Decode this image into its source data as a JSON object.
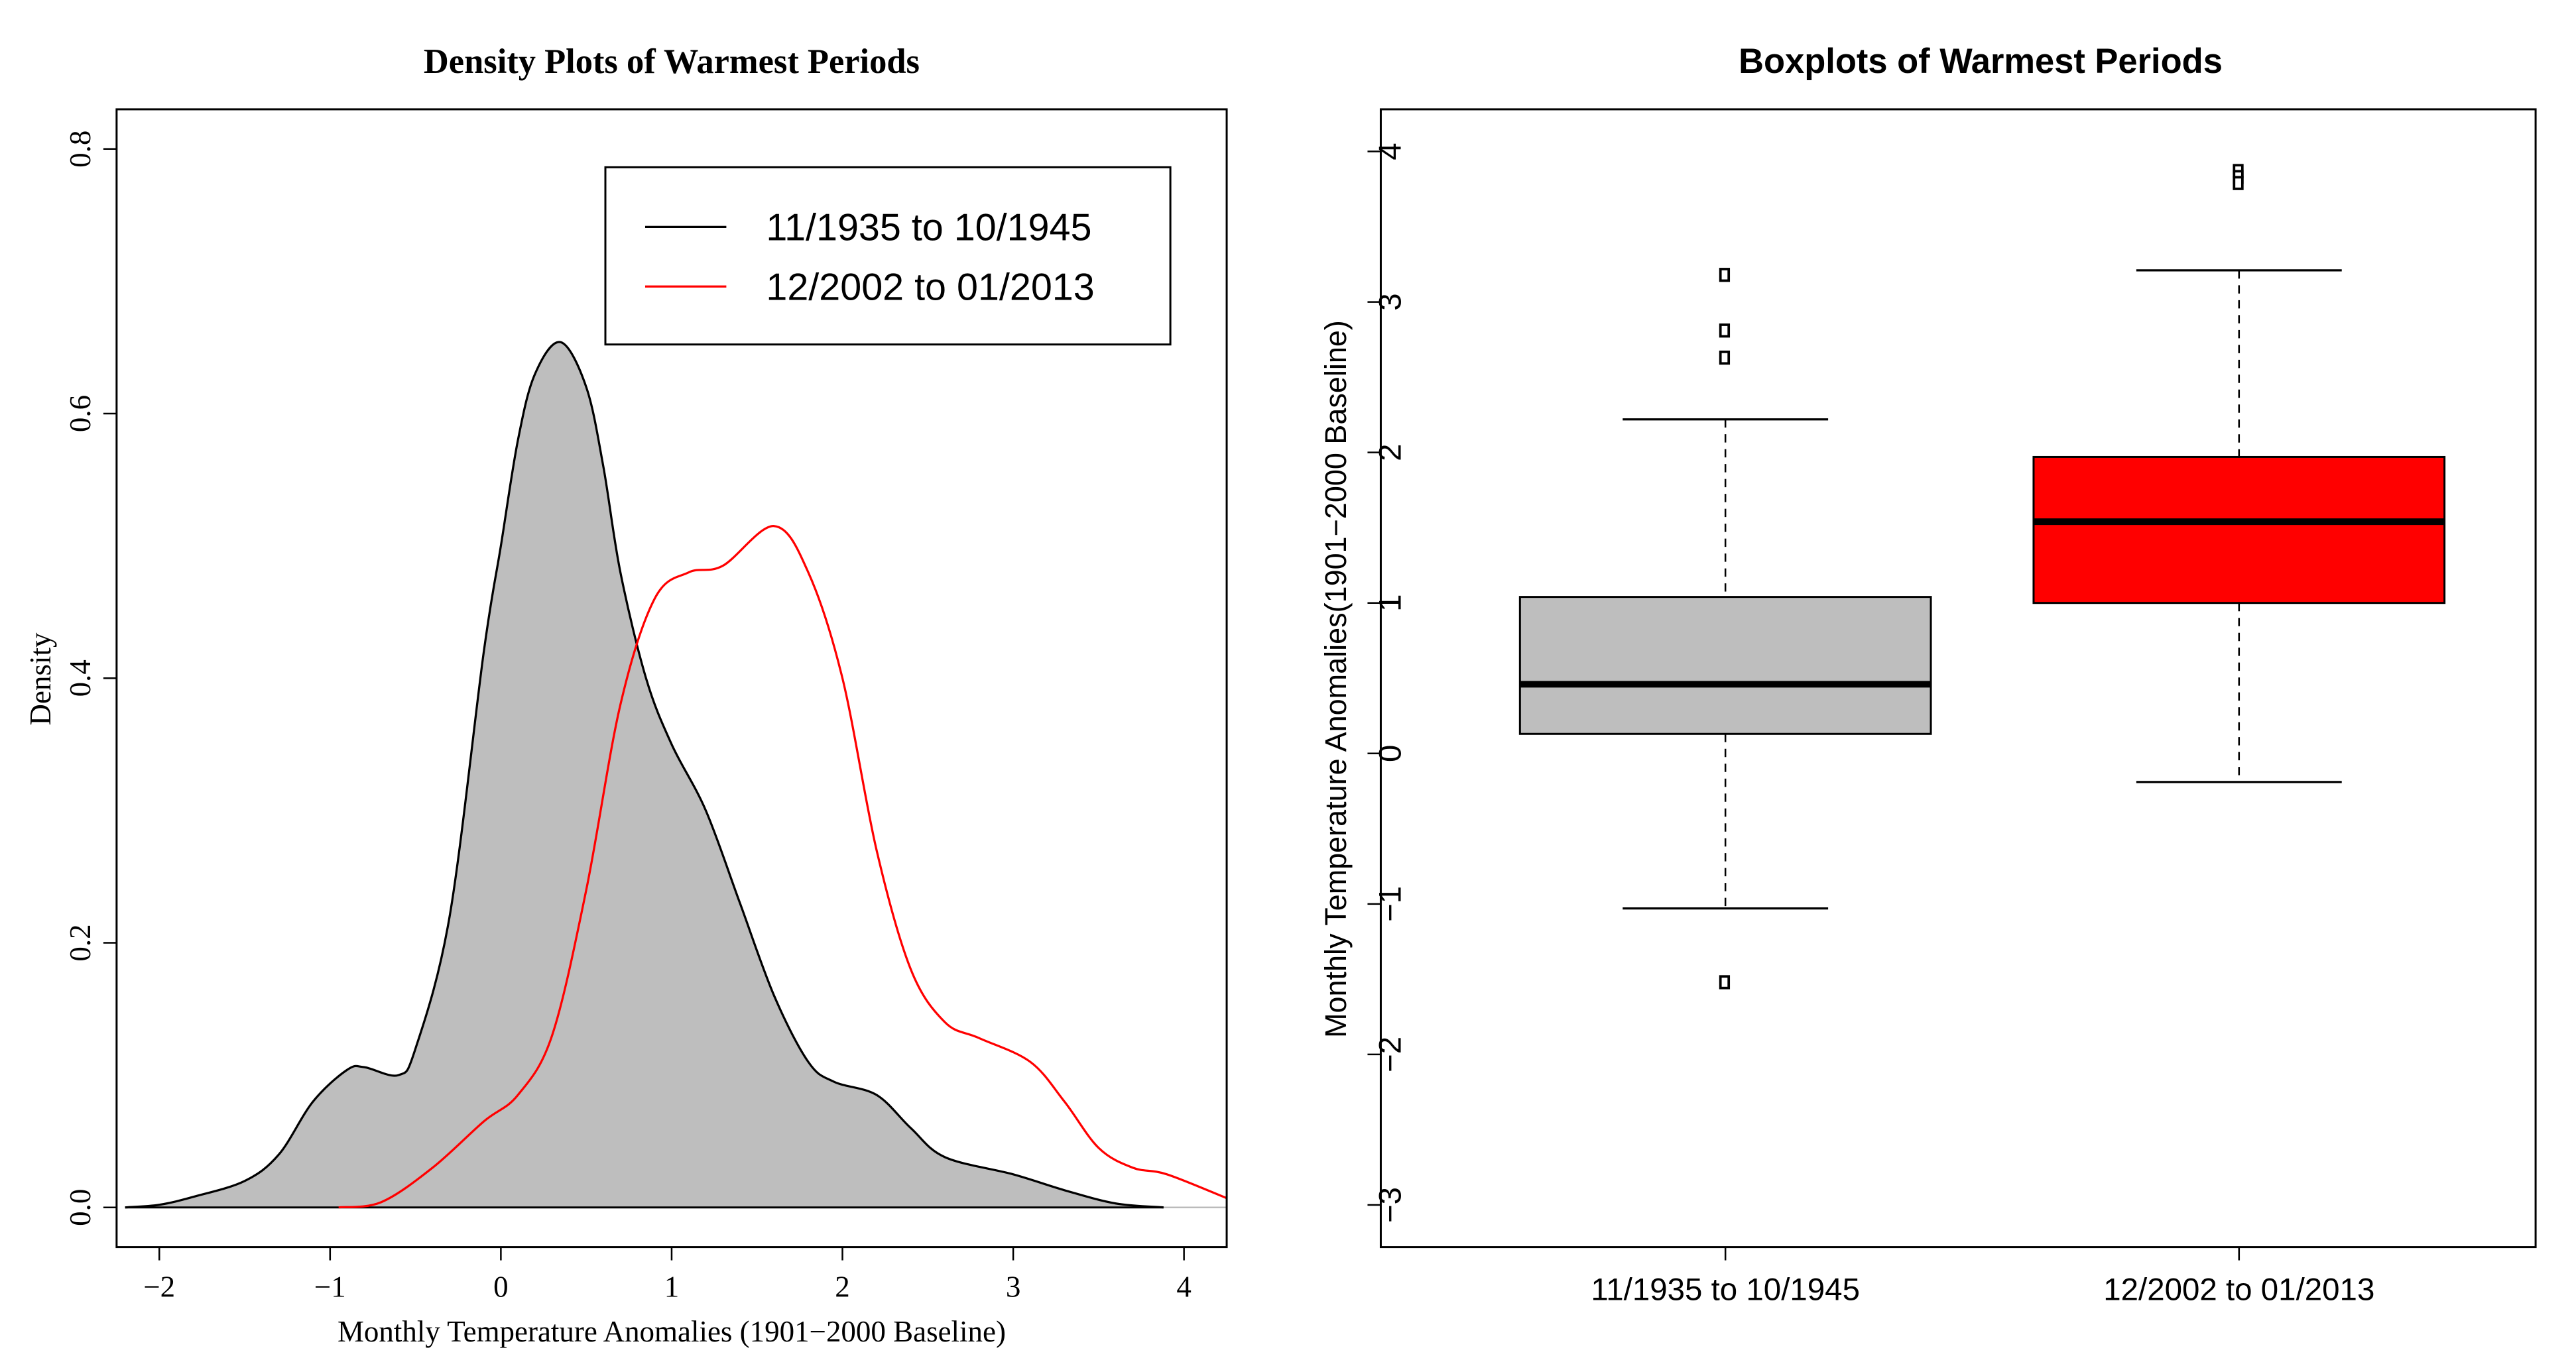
{
  "chart_data": [
    {
      "type": "line",
      "title": "Density Plots of Warmest Periods",
      "xlabel": "Monthly Temperature Anomalies (1901−2000 Baseline)",
      "ylabel": "Density",
      "xlim": [
        -2.25,
        4.25
      ],
      "ylim": [
        -0.03,
        0.83
      ],
      "xticks": [
        -2,
        -1,
        0,
        1,
        2,
        3,
        4
      ],
      "xtick_labels": [
        "−2",
        "−1",
        "0",
        "1",
        "2",
        "3",
        "4"
      ],
      "yticks": [
        0,
        0.2,
        0.4,
        0.6,
        0.8
      ],
      "ytick_labels": [
        "0.0",
        "0.2",
        "0.4",
        "0.6",
        "0.8"
      ],
      "legend_position": "top-right",
      "series": [
        {
          "name": "11/1935 to 10/1945",
          "color": "#000000",
          "fill": "#bebebe",
          "x": [
            -2.2,
            -2,
            -1.8,
            -1.5,
            -1.3,
            -1.1,
            -0.9,
            -0.8,
            -0.6,
            -0.5,
            -0.3,
            -0.1,
            0,
            0.1,
            0.2,
            0.35,
            0.5,
            0.6,
            0.7,
            0.85,
            1.0,
            1.2,
            1.4,
            1.6,
            1.8,
            1.95,
            2.2,
            2.4,
            2.6,
            3.0,
            3.3,
            3.6,
            3.88
          ],
          "y": [
            0,
            0.002,
            0.008,
            0.02,
            0.04,
            0.08,
            0.104,
            0.106,
            0.1,
            0.12,
            0.22,
            0.42,
            0.5,
            0.58,
            0.63,
            0.654,
            0.62,
            0.56,
            0.48,
            0.4,
            0.35,
            0.3,
            0.23,
            0.16,
            0.11,
            0.095,
            0.085,
            0.06,
            0.038,
            0.025,
            0.013,
            0.003,
            0
          ]
        },
        {
          "name": "12/2002 to 01/2013",
          "color": "#ff0000",
          "x": [
            -0.95,
            -0.7,
            -0.4,
            -0.1,
            0.1,
            0.3,
            0.5,
            0.7,
            0.9,
            1.1,
            1.3,
            1.6,
            1.8,
            2.0,
            2.2,
            2.4,
            2.6,
            2.8,
            3.1,
            3.3,
            3.5,
            3.7,
            3.9,
            4.25
          ],
          "y": [
            0,
            0.004,
            0.03,
            0.065,
            0.085,
            0.13,
            0.24,
            0.38,
            0.46,
            0.48,
            0.485,
            0.515,
            0.48,
            0.4,
            0.27,
            0.18,
            0.14,
            0.128,
            0.11,
            0.08,
            0.045,
            0.03,
            0.025,
            0.007
          ]
        }
      ]
    },
    {
      "type": "box",
      "title": "Boxplots of Warmest Periods",
      "xlabel": "",
      "ylabel": "Monthly Temperature Anomalies(1901−2000 Baseline)",
      "ylim": [
        -3.28,
        4.28
      ],
      "yticks": [
        -3,
        -2,
        -1,
        0,
        1,
        2,
        3,
        4
      ],
      "ytick_labels": [
        "−3",
        "−2",
        "−1",
        "0",
        "1",
        "2",
        "3",
        "4"
      ],
      "categories": [
        "11/1935 to 10/1945",
        "12/2002 to 01/2013"
      ],
      "boxes": [
        {
          "name": "11/1935 to 10/1945",
          "color": "#bebebe",
          "whisker_low": -1.03,
          "q1": 0.13,
          "median": 0.46,
          "q3": 1.04,
          "whisker_high": 2.22,
          "outliers": [
            3.18,
            2.81,
            2.63,
            -1.52
          ]
        },
        {
          "name": "12/2002 to 01/2013",
          "color": "#ff0000",
          "whisker_low": -0.19,
          "q1": 1.0,
          "median": 1.54,
          "q3": 1.97,
          "whisker_high": 3.21,
          "outliers": [
            3.87,
            3.83,
            3.79
          ]
        }
      ]
    }
  ]
}
